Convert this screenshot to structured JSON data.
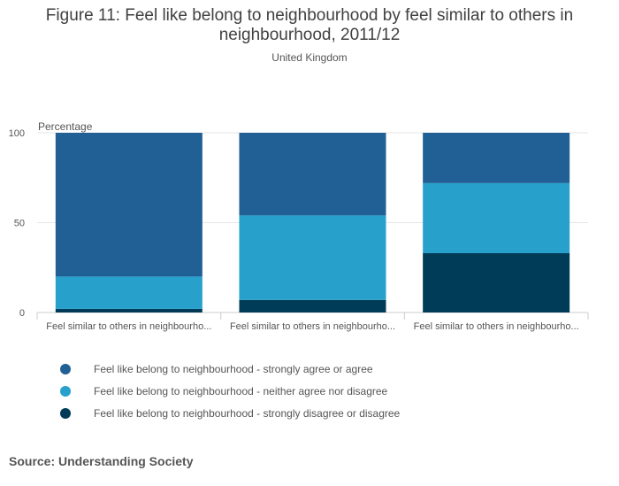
{
  "title": "Figure 11: Feel like belong to neighbourhood by feel similar to others in neighbourhood, 2011/12",
  "subtitle": "United Kingdom",
  "source": "Source: Understanding Society",
  "chart_data": {
    "type": "bar",
    "stacked": true,
    "ylabel": "Percentage",
    "ylim": [
      0,
      100
    ],
    "yticks": [
      0,
      50,
      100
    ],
    "grid": true,
    "categories": [
      "Feel similar to others in neighbourho...",
      "Feel similar to others in neighbourho...",
      "Feel similar to others in neighbourho..."
    ],
    "series": [
      {
        "name": "Feel like belong to neighbourhood - strongly disagree or disagree",
        "color": "#003c57",
        "values": [
          2,
          7,
          33
        ]
      },
      {
        "name": "Feel like belong to neighbourhood - neither agree nor disagree",
        "color": "#27a0cc",
        "values": [
          18,
          47,
          39
        ]
      },
      {
        "name": "Feel like belong to neighbourhood - strongly agree or agree",
        "color": "#206095",
        "values": [
          80,
          46,
          28
        ]
      }
    ],
    "legend_order": [
      2,
      1,
      0
    ]
  }
}
